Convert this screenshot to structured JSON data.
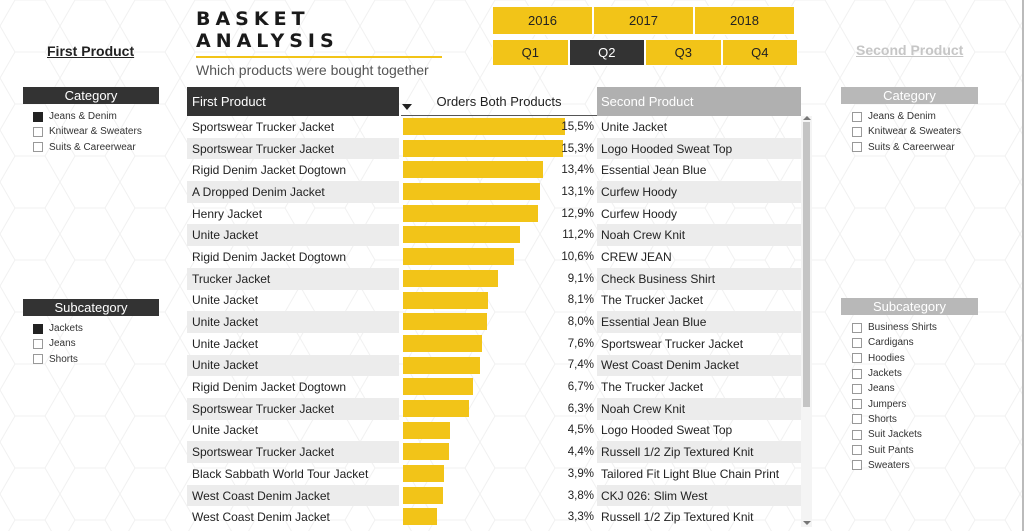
{
  "title": {
    "main": "BASKET ANALYSIS",
    "subtitle": "Which products were bought together"
  },
  "colors": {
    "accent": "#f2c418",
    "dark": "#333333",
    "muted": "#b0b0b0"
  },
  "years": [
    "2016",
    "2017",
    "2018"
  ],
  "quarters": [
    {
      "label": "Q1",
      "selected": false
    },
    {
      "label": "Q2",
      "selected": true
    },
    {
      "label": "Q3",
      "selected": false
    },
    {
      "label": "Q4",
      "selected": false
    }
  ],
  "first_product_heading": "First Product",
  "second_product_heading": "Second Product",
  "left_filters": {
    "category": {
      "header": "Category",
      "items": [
        {
          "label": "Jeans & Denim",
          "checked": true
        },
        {
          "label": "Knitwear & Sweaters",
          "checked": false
        },
        {
          "label": "Suits & Careerwear",
          "checked": false
        }
      ]
    },
    "subcategory": {
      "header": "Subcategory",
      "items": [
        {
          "label": "Jackets",
          "checked": true
        },
        {
          "label": "Jeans",
          "checked": false
        },
        {
          "label": "Shorts",
          "checked": false
        }
      ]
    }
  },
  "right_filters": {
    "category": {
      "header": "Category",
      "items": [
        {
          "label": "Jeans & Denim",
          "checked": false
        },
        {
          "label": "Knitwear & Sweaters",
          "checked": false
        },
        {
          "label": "Suits & Careerwear",
          "checked": false
        }
      ]
    },
    "subcategory": {
      "header": "Subcategory",
      "items": [
        {
          "label": "Business Shirts",
          "checked": false
        },
        {
          "label": "Cardigans",
          "checked": false
        },
        {
          "label": "Hoodies",
          "checked": false
        },
        {
          "label": "Jackets",
          "checked": false
        },
        {
          "label": "Jeans",
          "checked": false
        },
        {
          "label": "Jumpers",
          "checked": false
        },
        {
          "label": "Shorts",
          "checked": false
        },
        {
          "label": "Suit Jackets",
          "checked": false
        },
        {
          "label": "Suit Pants",
          "checked": false
        },
        {
          "label": "Sweaters",
          "checked": false
        }
      ]
    }
  },
  "table": {
    "headers": {
      "first": "First Product",
      "orders": "Orders Both Products",
      "second": "Second Product"
    },
    "rows": [
      {
        "first": "Sportswear Trucker Jacket",
        "pct": "15,5%",
        "value": 15.5,
        "second": "Unite Jacket"
      },
      {
        "first": "Sportswear Trucker Jacket",
        "pct": "15,3%",
        "value": 15.3,
        "second": "Logo Hooded Sweat Top"
      },
      {
        "first": "Rigid Denim Jacket Dogtown",
        "pct": "13,4%",
        "value": 13.4,
        "second": "Essential Jean Blue"
      },
      {
        "first": "A Dropped Denim Jacket",
        "pct": "13,1%",
        "value": 13.1,
        "second": "Curfew Hoody"
      },
      {
        "first": "Henry Jacket",
        "pct": "12,9%",
        "value": 12.9,
        "second": "Curfew Hoody"
      },
      {
        "first": "Unite Jacket",
        "pct": "11,2%",
        "value": 11.2,
        "second": "Noah Crew Knit"
      },
      {
        "first": "Rigid Denim Jacket Dogtown",
        "pct": "10,6%",
        "value": 10.6,
        "second": "CREW JEAN"
      },
      {
        "first": "Trucker Jacket",
        "pct": "9,1%",
        "value": 9.1,
        "second": "Check Business Shirt"
      },
      {
        "first": "Unite Jacket",
        "pct": "8,1%",
        "value": 8.1,
        "second": "The Trucker Jacket"
      },
      {
        "first": "Unite Jacket",
        "pct": "8,0%",
        "value": 8.0,
        "second": "Essential Jean Blue"
      },
      {
        "first": "Unite Jacket",
        "pct": "7,6%",
        "value": 7.6,
        "second": "Sportswear Trucker Jacket"
      },
      {
        "first": "Unite Jacket",
        "pct": "7,4%",
        "value": 7.4,
        "second": "West Coast Denim Jacket"
      },
      {
        "first": "Rigid Denim Jacket Dogtown",
        "pct": "6,7%",
        "value": 6.7,
        "second": "The Trucker Jacket"
      },
      {
        "first": "Sportswear Trucker Jacket",
        "pct": "6,3%",
        "value": 6.3,
        "second": "Noah Crew Knit"
      },
      {
        "first": "Unite Jacket",
        "pct": "4,5%",
        "value": 4.5,
        "second": "Logo Hooded Sweat Top"
      },
      {
        "first": "Sportswear Trucker Jacket",
        "pct": "4,4%",
        "value": 4.4,
        "second": "Russell 1/2 Zip Textured Knit"
      },
      {
        "first": "Black Sabbath World Tour Jacket",
        "pct": "3,9%",
        "value": 3.9,
        "second": "Tailored Fit Light Blue Chain Print"
      },
      {
        "first": "West Coast Denim Jacket",
        "pct": "3,8%",
        "value": 3.8,
        "second": "CKJ 026: Slim West"
      },
      {
        "first": "West Coast Denim Jacket",
        "pct": "3,3%",
        "value": 3.3,
        "second": "Russell 1/2 Zip Textured Knit"
      }
    ]
  }
}
